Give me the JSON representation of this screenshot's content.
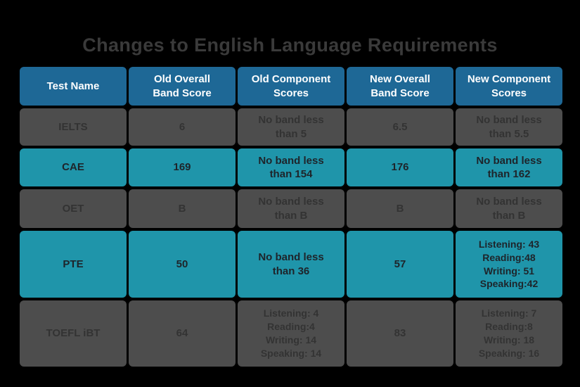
{
  "title": "Changes to English Language Requirements",
  "table": {
    "headers": [
      "Test Name",
      "Old Overall\nBand Score",
      "Old Component\nScores",
      "New Overall\nBand Score",
      "New Component\nScores"
    ],
    "rows": [
      {
        "test": "IELTS",
        "old_overall": "6",
        "old_component": "No band less\nthan 5",
        "new_overall": "6.5",
        "new_component": "No band less\nthan 5.5"
      },
      {
        "test": "CAE",
        "old_overall": "169",
        "old_component": "No band less\nthan 154",
        "new_overall": "176",
        "new_component": "No band less\nthan 162"
      },
      {
        "test": "OET",
        "old_overall": "B",
        "old_component": "No band less\nthan B",
        "new_overall": "B",
        "new_component": "No band less\nthan B"
      },
      {
        "test": "PTE",
        "old_overall": "50",
        "old_component": "No band less\nthan 36",
        "new_overall": "57",
        "new_component": "Listening: 43\nReading:48\nWriting: 51\nSpeaking:42"
      },
      {
        "test": "TOEFL iBT",
        "old_overall": "64",
        "old_component": "Listening: 4\nReading:4\nWriting: 14\nSpeaking: 14",
        "new_overall": "83",
        "new_component": "Listening: 7\nReading:8\nWriting: 18\nSpeaking: 16"
      }
    ]
  },
  "colors": {
    "background": "#000000",
    "title_color": "#3a3a3a",
    "header_bg": "#1e6896",
    "header_text": "#ffffff",
    "gray_bg": "#4d4d4d",
    "gray_text": "#333333",
    "teal_bg": "#1f95aa",
    "teal_text": "#1e242a"
  },
  "chart_data": {
    "type": "table",
    "title": "Changes to English Language Requirements",
    "columns": [
      "Test Name",
      "Old Overall Band Score",
      "Old Component Scores",
      "New Overall Band Score",
      "New Component Scores"
    ],
    "rows": [
      [
        "IELTS",
        "6",
        "No band less than 5",
        "6.5",
        "No band less than 5.5"
      ],
      [
        "CAE",
        "169",
        "No band less than 154",
        "176",
        "No band less than 162"
      ],
      [
        "OET",
        "B",
        "No band less than B",
        "B",
        "No band less than B"
      ],
      [
        "PTE",
        "50",
        "No band less than 36",
        "57",
        "Listening: 43; Reading: 48; Writing: 51; Speaking: 42"
      ],
      [
        "TOEFL iBT",
        "64",
        "Listening: 4; Reading: 4; Writing: 14; Speaking: 14",
        "83",
        "Listening: 7; Reading: 8; Writing: 18; Speaking: 16"
      ]
    ],
    "layout": {
      "legend": "none",
      "grid": "off",
      "row_color_pattern": [
        "gray",
        "teal",
        "gray",
        "teal",
        "gray"
      ]
    }
  }
}
